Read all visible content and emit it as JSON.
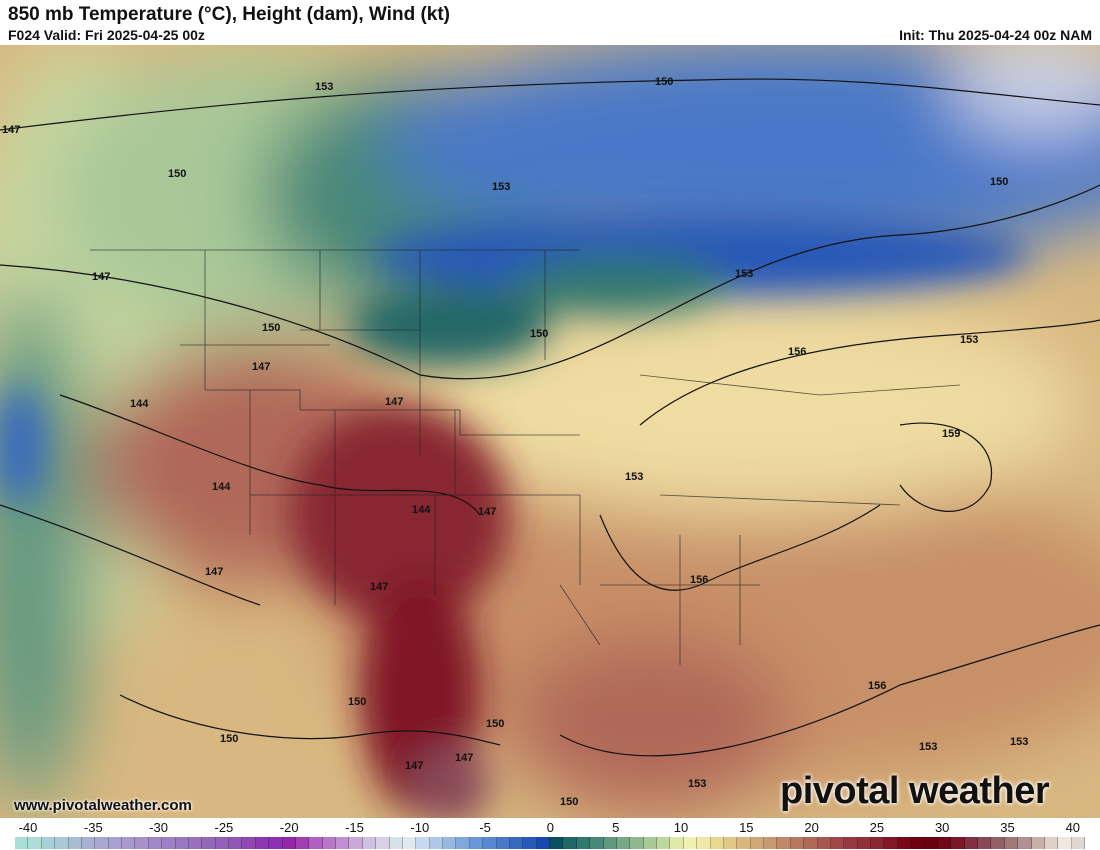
{
  "header": {
    "title": "850 mb Temperature (°C), Height (dam), Wind (kt)",
    "valid": "F024 Valid: Fri 2025-04-25 00z",
    "init": "Init: Thu 2025-04-24 00z NAM"
  },
  "map": {
    "contour_labels": [
      "150",
      "153",
      "147",
      "150",
      "153",
      "147",
      "150",
      "150",
      "153",
      "150",
      "147",
      "144",
      "147",
      "144",
      "147",
      "144",
      "147",
      "147",
      "150",
      "150",
      "147",
      "147",
      "150",
      "153",
      "156",
      "153",
      "159",
      "153",
      "156",
      "156",
      "153",
      "153",
      "150"
    ]
  },
  "watermark": {
    "site": "www.pivotalweather.com",
    "logo": "pivotal weather"
  },
  "colorbar": {
    "tick_labels": [
      "-40",
      "-35",
      "-30",
      "-25",
      "-20",
      "-15",
      "-10",
      "-5",
      "0",
      "5",
      "10",
      "15",
      "20",
      "25",
      "30",
      "35",
      "40"
    ],
    "colors": [
      "#a8e0d8",
      "#b0dcd8",
      "#a8d0d8",
      "#a8c8d4",
      "#a8bcd4",
      "#a8b0d4",
      "#a8a8d0",
      "#a8a0d0",
      "#a898cc",
      "#a890c8",
      "#a088c8",
      "#9c80c4",
      "#9878c0",
      "#9870bc",
      "#9468b8",
      "#9460b8",
      "#9058b4",
      "#9048b0",
      "#8c38b0",
      "#8c30b0",
      "#9028a8",
      "#a040b0",
      "#b060c0",
      "#b878c8",
      "#c090d0",
      "#c8a8d8",
      "#d0c0e0",
      "#d8d0e8",
      "#d8e0e8",
      "#e0e8f0",
      "#c8d8f0",
      "#b0c8e8",
      "#98b8e0",
      "#80a8d8",
      "#6898d8",
      "#5888d0",
      "#4878c8",
      "#3868c0",
      "#2858b8",
      "#1848b0",
      "#0a5060",
      "#206868",
      "#307870",
      "#488878",
      "#609880",
      "#78a888",
      "#90b890",
      "#a8c898",
      "#c0d8a0",
      "#e0e8a8",
      "#f0f0b0",
      "#f0e8a8",
      "#e8d890",
      "#e0c888",
      "#d8b880",
      "#d0a878",
      "#c89870",
      "#c08868",
      "#b87860",
      "#b06858",
      "#a85850",
      "#a04848",
      "#983840",
      "#903038",
      "#882830",
      "#801828",
      "#780818",
      "#700010",
      "#6a0010",
      "#700818",
      "#781828",
      "#803040",
      "#884858",
      "#906068",
      "#a07878",
      "#b09090",
      "#c8b0a8",
      "#e0d0c8",
      "#f0e8e0",
      "#e0d8d0"
    ]
  }
}
